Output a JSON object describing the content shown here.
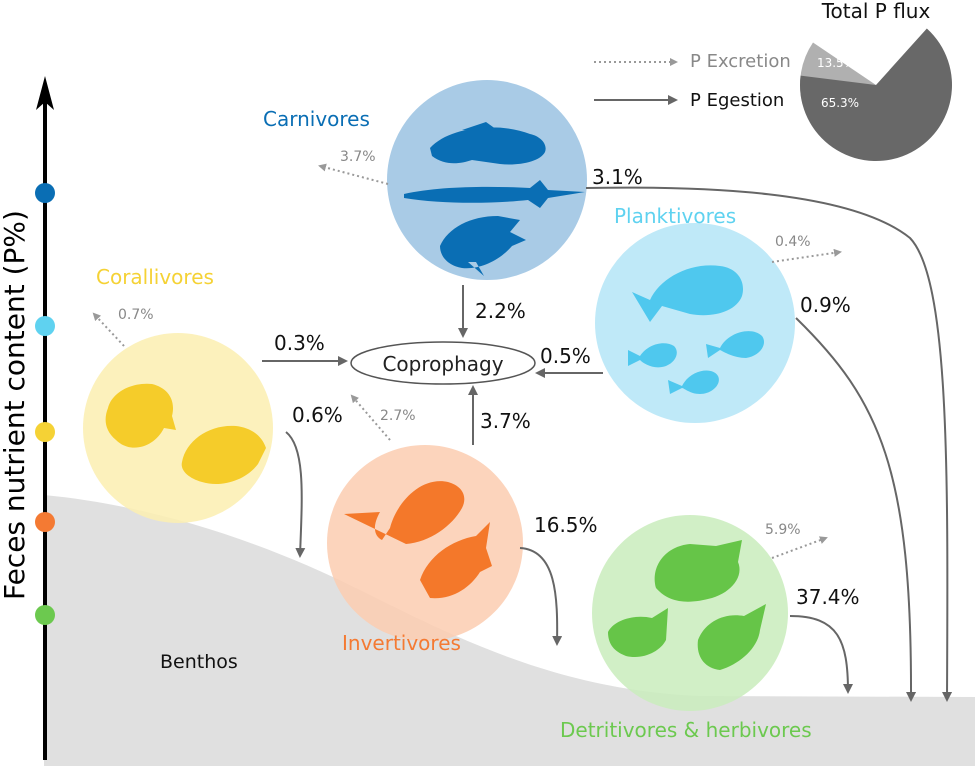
{
  "axis": {
    "label": "Feces nutrient content (P%)"
  },
  "groups": {
    "carnivores": {
      "label": "Carnivores",
      "color": "#0a6eb4",
      "circle": "#a9cbe6",
      "fish": "#0a6eb4"
    },
    "planktivores": {
      "label": "Planktivores",
      "color": "#5fd2f0",
      "circle": "#bfe9f8",
      "fish": "#4fc8ee"
    },
    "corallivores": {
      "label": "Corallivores",
      "color": "#f5d235",
      "circle": "#fbeeb0",
      "fish": "#f5cc2a"
    },
    "invertivores": {
      "label": "Invertivores",
      "color": "#f47a33",
      "circle": "#fbcdb0",
      "fish": "#f4782a"
    },
    "detritivores": {
      "label": "Detritivores & herbivores",
      "color": "#6cc94f",
      "circle": "#c9ecbc",
      "fish": "#66c548"
    }
  },
  "center": {
    "label": "Coprophagy"
  },
  "benthos": {
    "label": "Benthos"
  },
  "legend": {
    "excretion": "P Excretion",
    "egestion": "P Egestion"
  },
  "pie": {
    "title": "Total P flux",
    "slices": [
      {
        "label": "13.5%",
        "value": 13.5,
        "color": "#b0b0b0"
      },
      {
        "label": "65.3%",
        "value": 65.3,
        "color": "#686868"
      }
    ]
  },
  "fluxes": {
    "carn_excretion": "3.7%",
    "carn_benthos": "3.1%",
    "carn_copro": "2.2%",
    "plank_excretion": "0.4%",
    "plank_benthos": "0.9%",
    "plank_copro": "0.5%",
    "coral_excretion": "0.7%",
    "coral_copro": "0.3%",
    "coral_benthos": "0.6%",
    "invert_excretion": "2.7%",
    "invert_copro": "3.7%",
    "invert_benthos": "16.5%",
    "detr_excretion": "5.9%",
    "detr_benthos": "37.4%"
  }
}
